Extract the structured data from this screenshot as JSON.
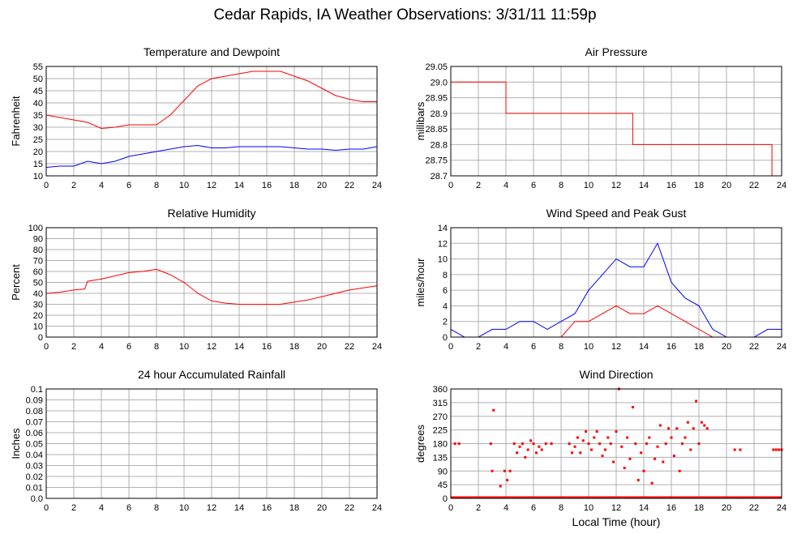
{
  "page_title": "Cedar Rapids, IA Weather Observations: 3/31/11 11:59p",
  "colors": {
    "grid": "#b0b0b0",
    "red": "#ff0000",
    "blue": "#0000ff",
    "frame": "#000000"
  },
  "x_axis_label": "Local Time (hour)",
  "chart_data": [
    {
      "id": "temp",
      "type": "line",
      "title": "Temperature and Dewpoint",
      "ylabel": "Fahrenheit",
      "xlabel": "",
      "xlim": [
        0,
        24
      ],
      "ylim": [
        10,
        55
      ],
      "grid": true,
      "xticks": [
        "0",
        "2",
        "4",
        "6",
        "8",
        "10",
        "12",
        "14",
        "16",
        "18",
        "20",
        "22",
        "24"
      ],
      "yticks": [
        "10",
        "15",
        "20",
        "25",
        "30",
        "35",
        "40",
        "45",
        "50",
        "55"
      ],
      "x": [
        0,
        1,
        2,
        3,
        4,
        5,
        6,
        7,
        8,
        9,
        10,
        11,
        12,
        13,
        14,
        15,
        16,
        17,
        18,
        19,
        20,
        21,
        22,
        23,
        24
      ],
      "series": [
        {
          "color": "#ff0000",
          "values": [
            35,
            34,
            33,
            32,
            29.5,
            30,
            31,
            31,
            31,
            35,
            41,
            47,
            50,
            51,
            52,
            53,
            53,
            53,
            51,
            49,
            46,
            43,
            41.5,
            40.5,
            40.5
          ]
        },
        {
          "color": "#0000ff",
          "values": [
            13.5,
            14,
            14,
            16,
            15,
            16,
            18,
            19,
            20,
            21,
            22,
            22.5,
            21.5,
            21.5,
            22,
            22,
            22,
            22,
            21.5,
            21,
            21,
            20.5,
            21,
            21,
            22
          ]
        }
      ]
    },
    {
      "id": "pressure",
      "type": "line",
      "title": "Air Pressure",
      "ylabel": "millibars",
      "xlabel": "",
      "xlim": [
        0,
        24
      ],
      "ylim": [
        28.7,
        29.05
      ],
      "grid": true,
      "xticks": [
        "0",
        "2",
        "4",
        "6",
        "8",
        "10",
        "12",
        "14",
        "16",
        "18",
        "20",
        "22",
        "24"
      ],
      "yticks": [
        "28.7",
        "28.75",
        "28.8",
        "28.85",
        "28.9",
        "28.95",
        "29.0",
        "29.05"
      ],
      "x": [
        0,
        4.0,
        4.0,
        13.2,
        13.2,
        23.3,
        23.3
      ],
      "series": [
        {
          "color": "#ff0000",
          "values": [
            29.0,
            29.0,
            28.9,
            28.9,
            28.8,
            28.8,
            28.7
          ]
        }
      ]
    },
    {
      "id": "humidity",
      "type": "line",
      "title": "Relative Humidity",
      "ylabel": "Percent",
      "xlabel": "",
      "xlim": [
        0,
        24
      ],
      "ylim": [
        0,
        100
      ],
      "grid": true,
      "xticks": [
        "0",
        "2",
        "4",
        "6",
        "8",
        "10",
        "12",
        "14",
        "16",
        "18",
        "20",
        "22",
        "24"
      ],
      "yticks": [
        "0",
        "10",
        "20",
        "30",
        "40",
        "50",
        "60",
        "70",
        "80",
        "90",
        "100"
      ],
      "x": [
        0,
        1,
        2,
        2.8,
        3,
        4,
        5,
        6,
        7,
        8,
        9,
        10,
        11,
        12,
        13,
        14,
        15,
        16,
        17,
        18,
        19,
        20,
        21,
        22,
        23,
        24
      ],
      "series": [
        {
          "color": "#ff0000",
          "values": [
            40,
            41,
            43,
            44,
            51,
            53,
            56,
            59,
            60,
            62,
            57,
            50,
            40,
            33,
            31,
            30,
            30,
            30,
            30,
            32,
            34,
            37,
            40,
            43,
            45,
            47
          ]
        }
      ]
    },
    {
      "id": "wind",
      "type": "line",
      "title": "Wind Speed and Peak Gust",
      "ylabel": "miles/hour",
      "xlabel": "",
      "xlim": [
        0,
        24
      ],
      "ylim": [
        0,
        14
      ],
      "grid": true,
      "xticks": [
        "0",
        "2",
        "4",
        "6",
        "8",
        "10",
        "12",
        "14",
        "16",
        "18",
        "20",
        "22",
        "24"
      ],
      "yticks": [
        "0",
        "2",
        "4",
        "6",
        "8",
        "10",
        "12",
        "14"
      ],
      "x": [
        0,
        1,
        2,
        3,
        4,
        5,
        6,
        7,
        8,
        9,
        10,
        11,
        12,
        13,
        14,
        15,
        16,
        17,
        18,
        19,
        20,
        21,
        22,
        23,
        24
      ],
      "series": [
        {
          "color": "#0000ff",
          "values": [
            1,
            0,
            0,
            1,
            1,
            2,
            2,
            1,
            2,
            3,
            6,
            8,
            10,
            9,
            9,
            12,
            7,
            5,
            4,
            1,
            0,
            0,
            0,
            1,
            1
          ]
        },
        {
          "color": "#ff0000",
          "values": [
            0,
            0,
            0,
            0,
            0,
            0,
            0,
            0,
            0,
            2,
            2,
            3,
            4,
            3,
            3,
            4,
            3,
            2,
            1,
            0,
            0,
            0,
            0,
            0,
            0
          ]
        }
      ]
    },
    {
      "id": "rain",
      "type": "line",
      "title": "24 hour Accumulated Rainfall",
      "ylabel": "Inches",
      "xlabel": "",
      "xlim": [
        0,
        24
      ],
      "ylim": [
        0,
        0.1
      ],
      "grid": true,
      "xticks": [
        "0",
        "2",
        "4",
        "6",
        "8",
        "10",
        "12",
        "14",
        "16",
        "18",
        "20",
        "22",
        "24"
      ],
      "yticks": [
        "0.0",
        "0.01",
        "0.02",
        "0.03",
        "0.04",
        "0.05",
        "0.06",
        "0.07",
        "0.08",
        "0.09",
        "0.1"
      ],
      "x": [
        0,
        24
      ],
      "series": [
        {
          "color": "#ff0000",
          "values": [
            0,
            0
          ]
        }
      ]
    },
    {
      "id": "direction",
      "type": "scatter",
      "title": "Wind Direction",
      "ylabel": "degrees",
      "xlabel": "Local Time (hour)",
      "xlim": [
        0,
        24
      ],
      "ylim": [
        0,
        360
      ],
      "grid": true,
      "xticks": [
        "0",
        "2",
        "4",
        "6",
        "8",
        "10",
        "12",
        "14",
        "16",
        "18",
        "20",
        "22",
        "24"
      ],
      "yticks": [
        "0",
        "45",
        "90",
        "135",
        "180",
        "225",
        "270",
        "315",
        "360"
      ],
      "series": [
        {
          "color": "#ff0000",
          "points": [
            [
              0.3,
              180
            ],
            [
              0.6,
              180
            ],
            [
              2.9,
              180
            ],
            [
              3.0,
              90
            ],
            [
              3.1,
              290
            ],
            [
              3.6,
              40
            ],
            [
              3.9,
              90
            ],
            [
              4.1,
              60
            ],
            [
              4.3,
              90
            ],
            [
              4.6,
              180
            ],
            [
              4.8,
              150
            ],
            [
              5.0,
              170
            ],
            [
              5.2,
              180
            ],
            [
              5.4,
              135
            ],
            [
              5.6,
              160
            ],
            [
              5.8,
              190
            ],
            [
              6.0,
              180
            ],
            [
              6.2,
              150
            ],
            [
              6.4,
              170
            ],
            [
              6.6,
              160
            ],
            [
              6.9,
              180
            ],
            [
              7.3,
              180
            ],
            [
              8.6,
              180
            ],
            [
              8.8,
              150
            ],
            [
              9.0,
              170
            ],
            [
              9.2,
              200
            ],
            [
              9.4,
              150
            ],
            [
              9.6,
              190
            ],
            [
              9.8,
              220
            ],
            [
              10.0,
              180
            ],
            [
              10.2,
              160
            ],
            [
              10.4,
              200
            ],
            [
              10.6,
              220
            ],
            [
              10.8,
              180
            ],
            [
              11.0,
              140
            ],
            [
              11.2,
              160
            ],
            [
              11.4,
              200
            ],
            [
              11.6,
              180
            ],
            [
              11.8,
              120
            ],
            [
              12.0,
              220
            ],
            [
              12.2,
              360
            ],
            [
              12.4,
              170
            ],
            [
              12.6,
              100
            ],
            [
              12.8,
              200
            ],
            [
              13.0,
              130
            ],
            [
              13.2,
              300
            ],
            [
              13.4,
              180
            ],
            [
              13.6,
              60
            ],
            [
              13.8,
              150
            ],
            [
              14.0,
              90
            ],
            [
              14.2,
              180
            ],
            [
              14.4,
              200
            ],
            [
              14.6,
              50
            ],
            [
              14.8,
              130
            ],
            [
              15.0,
              170
            ],
            [
              15.2,
              240
            ],
            [
              15.4,
              120
            ],
            [
              15.6,
              180
            ],
            [
              15.8,
              230
            ],
            [
              16.0,
              200
            ],
            [
              16.2,
              140
            ],
            [
              16.4,
              230
            ],
            [
              16.6,
              90
            ],
            [
              16.8,
              180
            ],
            [
              17.0,
              200
            ],
            [
              17.2,
              250
            ],
            [
              17.4,
              160
            ],
            [
              17.6,
              230
            ],
            [
              17.8,
              320
            ],
            [
              18.0,
              180
            ],
            [
              18.2,
              250
            ],
            [
              18.4,
              240
            ],
            [
              18.6,
              230
            ],
            [
              20.6,
              160
            ],
            [
              21.0,
              160
            ],
            [
              23.4,
              160
            ],
            [
              23.6,
              160
            ],
            [
              23.8,
              160
            ],
            [
              24.0,
              160
            ]
          ]
        }
      ]
    }
  ]
}
